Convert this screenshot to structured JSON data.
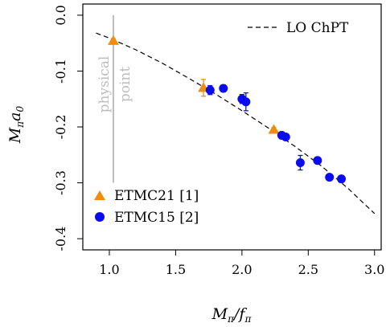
{
  "chart_data": {
    "type": "scatter",
    "xlabel": "Mπ/fπ",
    "ylabel": "Mπa0",
    "xlim": [
      0.8,
      3.05
    ],
    "ylim": [
      -0.42,
      0.02
    ],
    "x_ticks": [
      "1.0",
      "1.5",
      "2.0",
      "2.5",
      "3.0"
    ],
    "x_tick_values": [
      1.0,
      1.5,
      2.0,
      2.5,
      3.0
    ],
    "y_ticks": [
      "0.0",
      "-0.1",
      "-0.2",
      "-0.3",
      "-0.4"
    ],
    "y_tick_values": [
      0.0,
      -0.1,
      -0.2,
      -0.3,
      -0.4
    ],
    "physical_point": {
      "x": 1.03,
      "y_range": [
        -0.3,
        0.0
      ],
      "label_line1": "physical",
      "label_line2": "point",
      "color": "#bdbdbd"
    },
    "curve": {
      "name": "LO ChPT",
      "style": "dashed",
      "color": "#000000",
      "x": [
        0.9,
        1.0,
        1.2,
        1.4,
        1.6,
        1.8,
        2.0,
        2.2,
        2.4,
        2.6,
        2.8,
        3.0
      ],
      "y": [
        -0.032,
        -0.041,
        -0.062,
        -0.086,
        -0.113,
        -0.141,
        -0.171,
        -0.202,
        -0.235,
        -0.27,
        -0.31,
        -0.355
      ]
    },
    "series": [
      {
        "name": "ETMC21 [1]",
        "marker": "triangle",
        "color": "#f28c10",
        "points": [
          {
            "x": 1.03,
            "y": -0.046,
            "err": 0.004
          },
          {
            "x": 1.71,
            "y": -0.13,
            "err": 0.015
          },
          {
            "x": 2.24,
            "y": -0.205,
            "err": 0.004
          }
        ]
      },
      {
        "name": "ETMC15 [2]",
        "marker": "circle",
        "color": "#0b0bf0",
        "points": [
          {
            "x": 1.76,
            "y": -0.134,
            "err": 0.008
          },
          {
            "x": 1.86,
            "y": -0.131,
            "err": 0.006
          },
          {
            "x": 2.0,
            "y": -0.15,
            "err": 0.008
          },
          {
            "x": 2.03,
            "y": -0.155,
            "err": 0.016
          },
          {
            "x": 2.3,
            "y": -0.215,
            "err": 0.006
          },
          {
            "x": 2.33,
            "y": -0.218,
            "err": 0.004
          },
          {
            "x": 2.44,
            "y": -0.264,
            "err": 0.013
          },
          {
            "x": 2.57,
            "y": -0.26,
            "err": 0.004
          },
          {
            "x": 2.66,
            "y": -0.29,
            "err": 0.004
          },
          {
            "x": 2.75,
            "y": -0.293,
            "err": 0.004
          }
        ]
      }
    ],
    "legend_top_right": "LO ChPT",
    "legend_bottom_left": [
      "ETMC21 [1]",
      "ETMC15 [2]"
    ]
  }
}
